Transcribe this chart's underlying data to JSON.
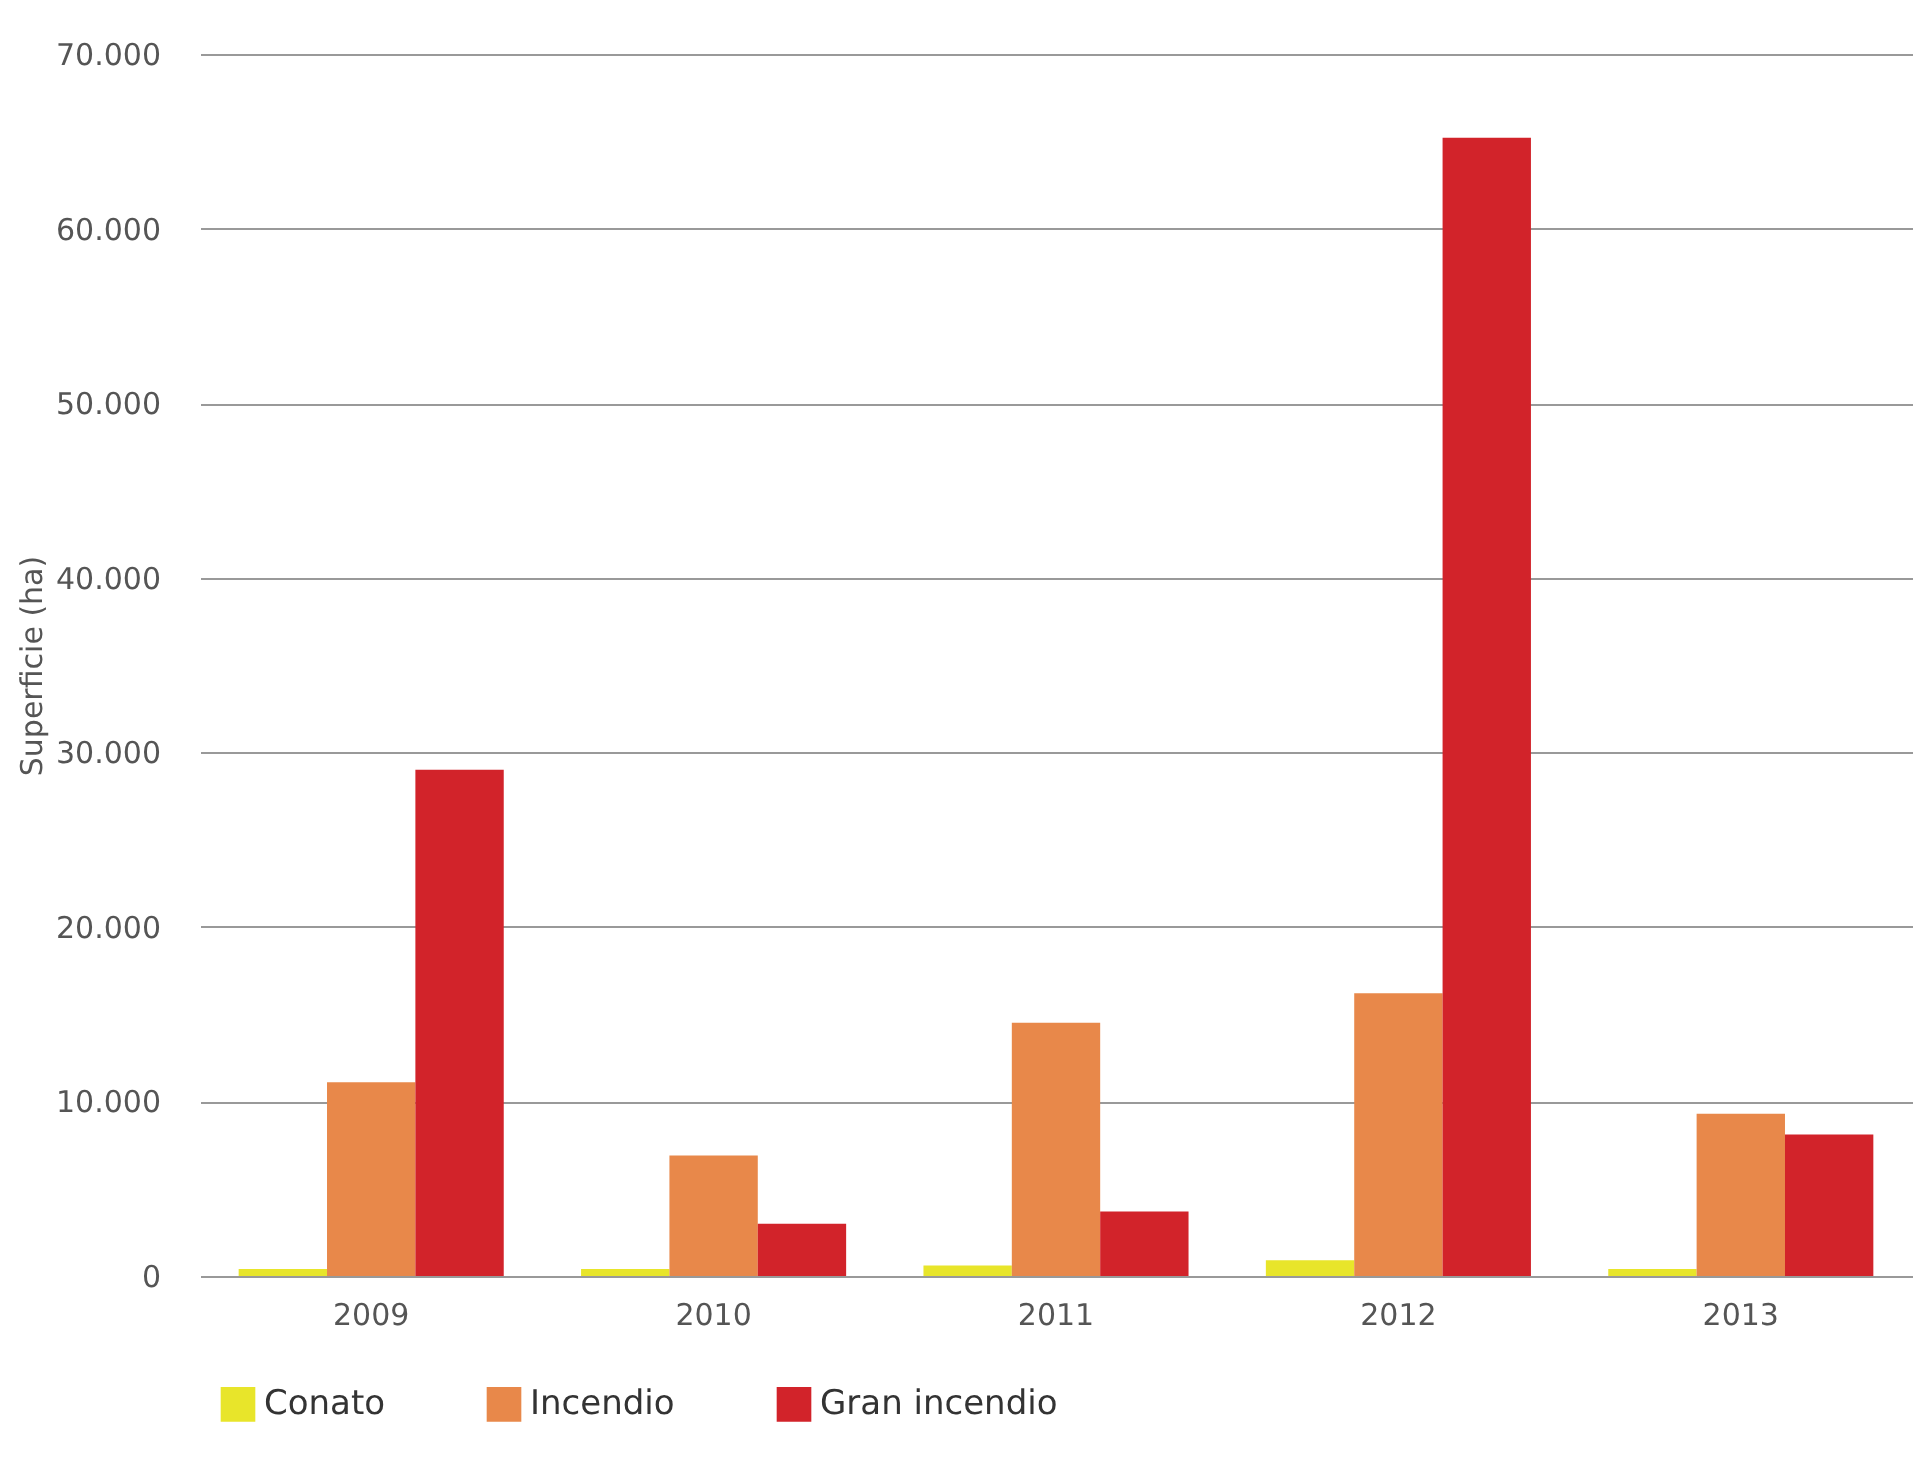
{
  "chart_data": {
    "type": "bar",
    "ylabel": "Superficie (ha)",
    "categories": [
      "2009",
      "2010",
      "2011",
      "2012",
      "2013"
    ],
    "series": [
      {
        "name": "Conato",
        "color": "#e8e52a",
        "values": [
          400,
          400,
          600,
          900,
          400
        ]
      },
      {
        "name": "Incendio",
        "color": "#e8884a",
        "values": [
          11100,
          6900,
          14500,
          16200,
          9300
        ]
      },
      {
        "name": "Gran incendio",
        "color": "#d2232a",
        "values": [
          29000,
          3000,
          3700,
          65200,
          8100
        ]
      }
    ],
    "ylim": [
      0,
      70000
    ],
    "yticks": [
      0,
      {
        "value": 10000,
        "label": "10.000"
      },
      {
        "value": 20000,
        "label": "20.000"
      },
      {
        "value": 30000,
        "label": "30.000"
      },
      {
        "value": 40000,
        "label": "40.000"
      },
      {
        "value": 50000,
        "label": "50.000"
      },
      {
        "value": 60000,
        "label": "60.000"
      },
      {
        "value": 70000,
        "label": "70.000"
      }
    ],
    "grid": "y",
    "legend": "bottom"
  }
}
